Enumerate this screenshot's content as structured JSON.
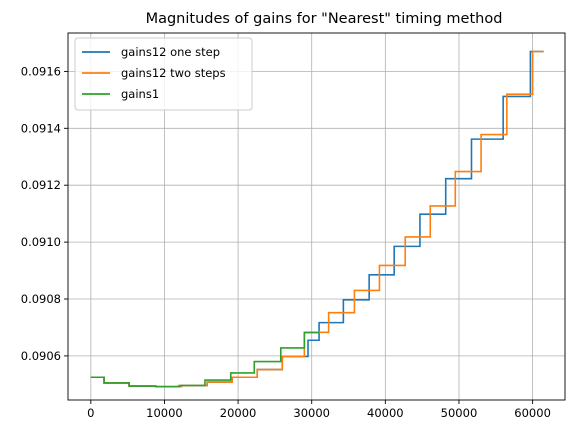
{
  "chart_data": {
    "type": "line",
    "title": "Magnitudes of gains for \"Nearest\" timing method",
    "xlabel": "",
    "ylabel": "",
    "xlim": [
      -3100,
      64400
    ],
    "ylim": [
      0.090445,
      0.091735
    ],
    "xticks": [
      0,
      10000,
      20000,
      30000,
      40000,
      50000,
      60000
    ],
    "xtick_labels": [
      "0",
      "10000",
      "20000",
      "30000",
      "40000",
      "50000",
      "60000"
    ],
    "yticks": [
      0.0906,
      0.0908,
      0.091,
      0.0912,
      0.0914,
      0.0916
    ],
    "ytick_labels": [
      "0.0906",
      "0.0908",
      "0.0910",
      "0.0912",
      "0.0914",
      "0.0916"
    ],
    "grid": true,
    "legend_position": "top-left",
    "step": "post",
    "series": [
      {
        "name": "gains12 one step",
        "color": "#1f77b4",
        "x": [
          0,
          1800,
          5200,
          8800,
          12300,
          15800,
          19200,
          22600,
          26000,
          29500,
          31000,
          34300,
          37800,
          41200,
          44700,
          48200,
          51700,
          56000,
          59700,
          61500
        ],
        "y": [
          0.090525,
          0.090505,
          0.090494,
          0.090492,
          0.090496,
          0.090508,
          0.090525,
          0.090552,
          0.090598,
          0.090655,
          0.090717,
          0.090797,
          0.090885,
          0.090985,
          0.091098,
          0.091223,
          0.091362,
          0.091512,
          0.09167,
          0.09167
        ]
      },
      {
        "name": "gains12 two steps",
        "color": "#ff7f0e",
        "x": [
          0,
          1800,
          5200,
          8800,
          12300,
          15800,
          19200,
          22600,
          26000,
          29000,
          32300,
          35800,
          39200,
          42700,
          46100,
          49500,
          53000,
          56500,
          60000,
          61500
        ],
        "y": [
          0.090525,
          0.090505,
          0.090494,
          0.090492,
          0.090496,
          0.090508,
          0.090525,
          0.090552,
          0.090598,
          0.090683,
          0.090752,
          0.09083,
          0.090918,
          0.091018,
          0.091127,
          0.091248,
          0.091378,
          0.09152,
          0.09167,
          0.09167
        ]
      },
      {
        "name": "gains1",
        "color": "#2ca02c",
        "x": [
          0,
          1800,
          5200,
          8800,
          12000,
          15500,
          19000,
          22200,
          25800,
          29000,
          31000
        ],
        "y": [
          0.090525,
          0.090505,
          0.090494,
          0.090492,
          0.090496,
          0.090515,
          0.09054,
          0.09058,
          0.090628,
          0.090682,
          0.090682
        ]
      }
    ]
  }
}
